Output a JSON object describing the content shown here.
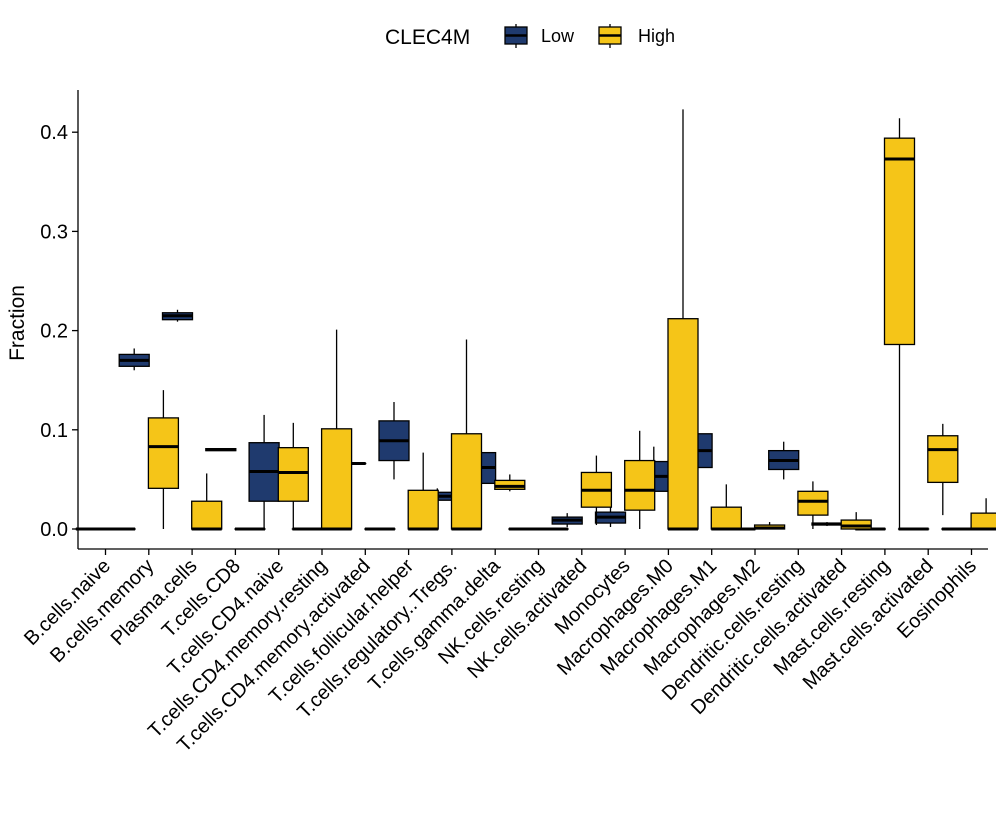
{
  "chart_data": {
    "type": "boxplot",
    "title": "",
    "xlabel": "",
    "ylabel": "Fraction",
    "ylim": [
      -0.02,
      0.44
    ],
    "yticks": [
      0.0,
      0.1,
      0.2,
      0.3,
      0.4
    ],
    "ytick_labels": [
      "0.0",
      "0.1",
      "0.2",
      "0.3",
      "0.4"
    ],
    "legend": {
      "title": "CLEC4M",
      "position": "top",
      "entries": [
        {
          "name": "Low",
          "color": "#1f3a6e"
        },
        {
          "name": "High",
          "color": "#f5c518"
        }
      ]
    },
    "categories": [
      "B.cells.naive",
      "B.cells.memory",
      "Plasma.cells",
      "T.cells.CD8",
      "T.cells.CD4.naive",
      "T.cells.CD4.memory.resting",
      "T.cells.CD4.memory.activated",
      "T.cells.follicular.helper",
      "T.cells.regulatory..Tregs.",
      "T.cells.gamma.delta",
      "NK.cells.resting",
      "NK.cells.activated",
      "Monocytes",
      "Macrophages.M0",
      "Macrophages.M1",
      "Macrophages.M2",
      "Dendritic.cells.resting",
      "Dendritic.cells.activated",
      "Mast.cells.resting",
      "Mast.cells.activated",
      "Eosinophils"
    ],
    "series": [
      {
        "name": "Low",
        "color": "#1f3a6e",
        "boxes": [
          {
            "min": 0.0,
            "q1": 0.0,
            "median": 0.0,
            "q3": 0.0,
            "max": 0.0
          },
          {
            "min": 0.16,
            "q1": 0.164,
            "median": 0.17,
            "q3": 0.176,
            "max": 0.182
          },
          {
            "min": 0.209,
            "q1": 0.211,
            "median": 0.215,
            "q3": 0.218,
            "max": 0.221
          },
          {
            "min": 0.079,
            "q1": 0.079,
            "median": 0.08,
            "q3": 0.081,
            "max": 0.081
          },
          {
            "min": 0.0,
            "q1": 0.028,
            "median": 0.058,
            "q3": 0.087,
            "max": 0.115
          },
          {
            "min": 0.0,
            "q1": 0.0,
            "median": 0.0,
            "q3": 0.0,
            "max": 0.0
          },
          {
            "min": 0.066,
            "q1": 0.066,
            "median": 0.066,
            "q3": 0.066,
            "max": 0.066
          },
          {
            "min": 0.05,
            "q1": 0.069,
            "median": 0.089,
            "q3": 0.109,
            "max": 0.128
          },
          {
            "min": 0.026,
            "q1": 0.029,
            "median": 0.033,
            "q3": 0.037,
            "max": 0.041
          },
          {
            "min": 0.033,
            "q1": 0.046,
            "median": 0.062,
            "q3": 0.077,
            "max": 0.092
          },
          {
            "min": 0.0,
            "q1": 0.0,
            "median": 0.0,
            "q3": 0.0,
            "max": 0.0
          },
          {
            "min": 0.002,
            "q1": 0.005,
            "median": 0.009,
            "q3": 0.012,
            "max": 0.016
          },
          {
            "min": 0.002,
            "q1": 0.006,
            "median": 0.012,
            "q3": 0.017,
            "max": 0.024
          },
          {
            "min": 0.024,
            "q1": 0.038,
            "median": 0.053,
            "q3": 0.068,
            "max": 0.083
          },
          {
            "min": 0.046,
            "q1": 0.062,
            "median": 0.079,
            "q3": 0.096,
            "max": 0.112
          },
          {
            "min": 0.0,
            "q1": 0.0,
            "median": 0.0,
            "q3": 0.0,
            "max": 0.0
          },
          {
            "min": 0.05,
            "q1": 0.06,
            "median": 0.069,
            "q3": 0.079,
            "max": 0.088
          },
          {
            "min": 0.003,
            "q1": 0.004,
            "median": 0.005,
            "q3": 0.006,
            "max": 0.007
          },
          {
            "min": 0.0,
            "q1": 0.0,
            "median": 0.0,
            "q3": 0.0,
            "max": 0.0
          },
          {
            "min": 0.0,
            "q1": 0.0,
            "median": 0.0,
            "q3": 0.0,
            "max": 0.0
          },
          {
            "min": 0.0,
            "q1": 0.0,
            "median": 0.0,
            "q3": 0.0,
            "max": 0.0
          }
        ]
      },
      {
        "name": "High",
        "color": "#f5c518",
        "boxes": [
          {
            "min": 0.0,
            "q1": 0.0,
            "median": 0.0,
            "q3": 0.0,
            "max": 0.0
          },
          {
            "min": 0.0,
            "q1": 0.041,
            "median": 0.083,
            "q3": 0.112,
            "max": 0.14
          },
          {
            "min": 0.0,
            "q1": 0.0,
            "median": 0.0,
            "q3": 0.028,
            "max": 0.056
          },
          {
            "min": 0.0,
            "q1": 0.0,
            "median": 0.0,
            "q3": 0.0,
            "max": 0.0
          },
          {
            "min": 0.0,
            "q1": 0.028,
            "median": 0.057,
            "q3": 0.082,
            "max": 0.107
          },
          {
            "min": 0.0,
            "q1": 0.0,
            "median": 0.0,
            "q3": 0.101,
            "max": 0.201
          },
          {
            "min": 0.0,
            "q1": 0.0,
            "median": 0.0,
            "q3": 0.0,
            "max": 0.0
          },
          {
            "min": 0.0,
            "q1": 0.0,
            "median": 0.0,
            "q3": 0.039,
            "max": 0.077
          },
          {
            "min": 0.0,
            "q1": 0.0,
            "median": 0.0,
            "q3": 0.096,
            "max": 0.191
          },
          {
            "min": 0.038,
            "q1": 0.04,
            "median": 0.043,
            "q3": 0.049,
            "max": 0.055
          },
          {
            "min": 0.0,
            "q1": 0.0,
            "median": 0.0,
            "q3": 0.0,
            "max": 0.0
          },
          {
            "min": 0.004,
            "q1": 0.022,
            "median": 0.039,
            "q3": 0.057,
            "max": 0.074
          },
          {
            "min": 0.0,
            "q1": 0.019,
            "median": 0.039,
            "q3": 0.069,
            "max": 0.099
          },
          {
            "min": 0.0,
            "q1": 0.0,
            "median": 0.0,
            "q3": 0.212,
            "max": 0.423
          },
          {
            "min": 0.0,
            "q1": 0.0,
            "median": 0.0,
            "q3": 0.022,
            "max": 0.045
          },
          {
            "min": 0.0,
            "q1": 0.0,
            "median": 0.001,
            "q3": 0.004,
            "max": 0.007
          },
          {
            "min": 0.0,
            "q1": 0.014,
            "median": 0.028,
            "q3": 0.038,
            "max": 0.048
          },
          {
            "min": 0.0,
            "q1": 0.0,
            "median": 0.003,
            "q3": 0.009,
            "max": 0.017
          },
          {
            "min": 0.0,
            "q1": 0.186,
            "median": 0.373,
            "q3": 0.394,
            "max": 0.414
          },
          {
            "min": 0.014,
            "q1": 0.047,
            "median": 0.08,
            "q3": 0.094,
            "max": 0.106
          },
          {
            "min": 0.0,
            "q1": 0.0,
            "median": 0.0,
            "q3": 0.016,
            "max": 0.031
          }
        ]
      }
    ]
  }
}
